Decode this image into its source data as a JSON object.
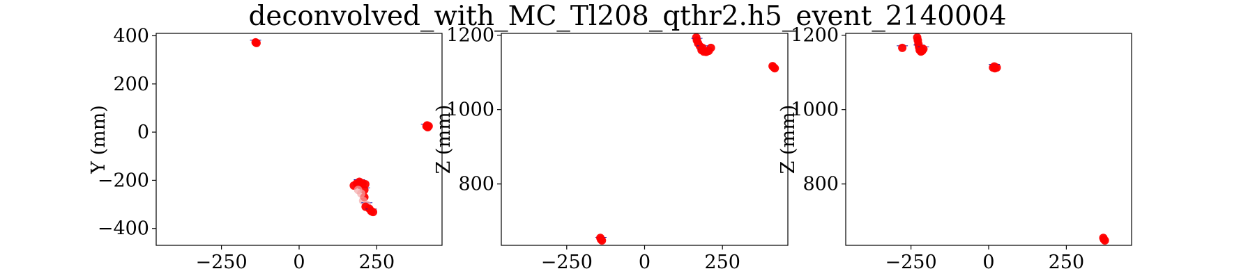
{
  "title": "deconvolved_with_MC_Tl208_qthr2.h5_event_2140004",
  "colors": {
    "hit": "#ff0000",
    "hit_light": "#f4a8a8",
    "mark": "#1a1aa6"
  },
  "chart_data": [
    {
      "type": "scatter",
      "xlabel": "",
      "ylabel": "Y (mm)",
      "xlim": [
        -460,
        460
      ],
      "ylim": [
        -470,
        410
      ],
      "xticks": [
        -250,
        0,
        250
      ],
      "yticks": [
        -400,
        -200,
        0,
        200,
        400
      ],
      "tick_labels_x": [
        "−250",
        "0",
        "250"
      ],
      "tick_labels_y": [
        "−400",
        "−200",
        "0",
        "200",
        "400"
      ],
      "points": [
        {
          "x": -140,
          "y": 373,
          "c": "hit"
        },
        {
          "x": -137,
          "y": 370,
          "c": "hit"
        },
        {
          "x": 412,
          "y": 28,
          "c": "hit"
        },
        {
          "x": 414,
          "y": 20,
          "c": "hit"
        },
        {
          "x": 410,
          "y": 24,
          "c": "hit"
        },
        {
          "x": 417,
          "y": 25,
          "c": "hit"
        },
        {
          "x": 176,
          "y": -222,
          "c": "hit"
        },
        {
          "x": 186,
          "y": -212,
          "c": "hit"
        },
        {
          "x": 194,
          "y": -206,
          "c": "hit"
        },
        {
          "x": 204,
          "y": -213,
          "c": "hit"
        },
        {
          "x": 213,
          "y": -216,
          "c": "hit"
        },
        {
          "x": 197,
          "y": -220,
          "c": "hit"
        },
        {
          "x": 210,
          "y": -240,
          "c": "hit"
        },
        {
          "x": 210,
          "y": -270,
          "c": "hit"
        },
        {
          "x": 200,
          "y": -255,
          "c": "hit_light"
        },
        {
          "x": 206,
          "y": -285,
          "c": "hit_light"
        },
        {
          "x": 218,
          "y": -302,
          "c": "hit_light"
        },
        {
          "x": 190,
          "y": -240,
          "c": "hit_light"
        },
        {
          "x": 214,
          "y": -310,
          "c": "hit"
        },
        {
          "x": 226,
          "y": -318,
          "c": "hit"
        },
        {
          "x": 232,
          "y": -328,
          "c": "hit"
        },
        {
          "x": 238,
          "y": -332,
          "c": "hit"
        }
      ]
    },
    {
      "type": "scatter",
      "xlabel": "",
      "ylabel": "Z (mm)",
      "xlim": [
        -460,
        460
      ],
      "ylim": [
        635,
        1205
      ],
      "xticks": [
        -250,
        0,
        250
      ],
      "yticks": [
        800,
        1000,
        1200
      ],
      "tick_labels_x": [
        "−250",
        "0",
        "250"
      ],
      "tick_labels_y": [
        "800",
        "1000",
        "1200"
      ],
      "points": [
        {
          "x": -140,
          "y": 651,
          "c": "hit"
        },
        {
          "x": -137,
          "y": 648,
          "c": "hit"
        },
        {
          "x": -142,
          "y": 655,
          "c": "hit"
        },
        {
          "x": 166,
          "y": 1194,
          "c": "hit"
        },
        {
          "x": 168,
          "y": 1186,
          "c": "hit"
        },
        {
          "x": 172,
          "y": 1178,
          "c": "hit"
        },
        {
          "x": 178,
          "y": 1170,
          "c": "hit"
        },
        {
          "x": 183,
          "y": 1160,
          "c": "hit"
        },
        {
          "x": 190,
          "y": 1156,
          "c": "hit"
        },
        {
          "x": 198,
          "y": 1155,
          "c": "hit"
        },
        {
          "x": 206,
          "y": 1158,
          "c": "hit"
        },
        {
          "x": 213,
          "y": 1166,
          "c": "hit"
        },
        {
          "x": 186,
          "y": 1166,
          "c": "hit"
        },
        {
          "x": 414,
          "y": 1114,
          "c": "hit"
        },
        {
          "x": 418,
          "y": 1111,
          "c": "hit"
        },
        {
          "x": 411,
          "y": 1117,
          "c": "hit"
        }
      ]
    },
    {
      "type": "scatter",
      "xlabel": "",
      "ylabel": "Z (mm)",
      "xlim": [
        -460,
        460
      ],
      "ylim": [
        635,
        1205
      ],
      "xticks": [
        -250,
        0,
        250
      ],
      "yticks": [
        800,
        1000,
        1200
      ],
      "tick_labels_x": [
        "−250",
        "0",
        "250"
      ],
      "tick_labels_y": [
        "800",
        "1000",
        "1200"
      ],
      "points": [
        {
          "x": -278,
          "y": 1166,
          "c": "hit"
        },
        {
          "x": -230,
          "y": 1194,
          "c": "hit"
        },
        {
          "x": -228,
          "y": 1186,
          "c": "hit"
        },
        {
          "x": -226,
          "y": 1176,
          "c": "hit"
        },
        {
          "x": -224,
          "y": 1168,
          "c": "hit"
        },
        {
          "x": -222,
          "y": 1160,
          "c": "hit"
        },
        {
          "x": -218,
          "y": 1156,
          "c": "hit"
        },
        {
          "x": -214,
          "y": 1158,
          "c": "hit"
        },
        {
          "x": -210,
          "y": 1163,
          "c": "hit"
        },
        {
          "x": 14,
          "y": 1113,
          "c": "hit"
        },
        {
          "x": 20,
          "y": 1111,
          "c": "hit"
        },
        {
          "x": 26,
          "y": 1113,
          "c": "hit"
        },
        {
          "x": 18,
          "y": 1116,
          "c": "hit"
        },
        {
          "x": 371,
          "y": 651,
          "c": "hit"
        },
        {
          "x": 374,
          "y": 648,
          "c": "hit"
        },
        {
          "x": 369,
          "y": 655,
          "c": "hit"
        }
      ]
    }
  ]
}
